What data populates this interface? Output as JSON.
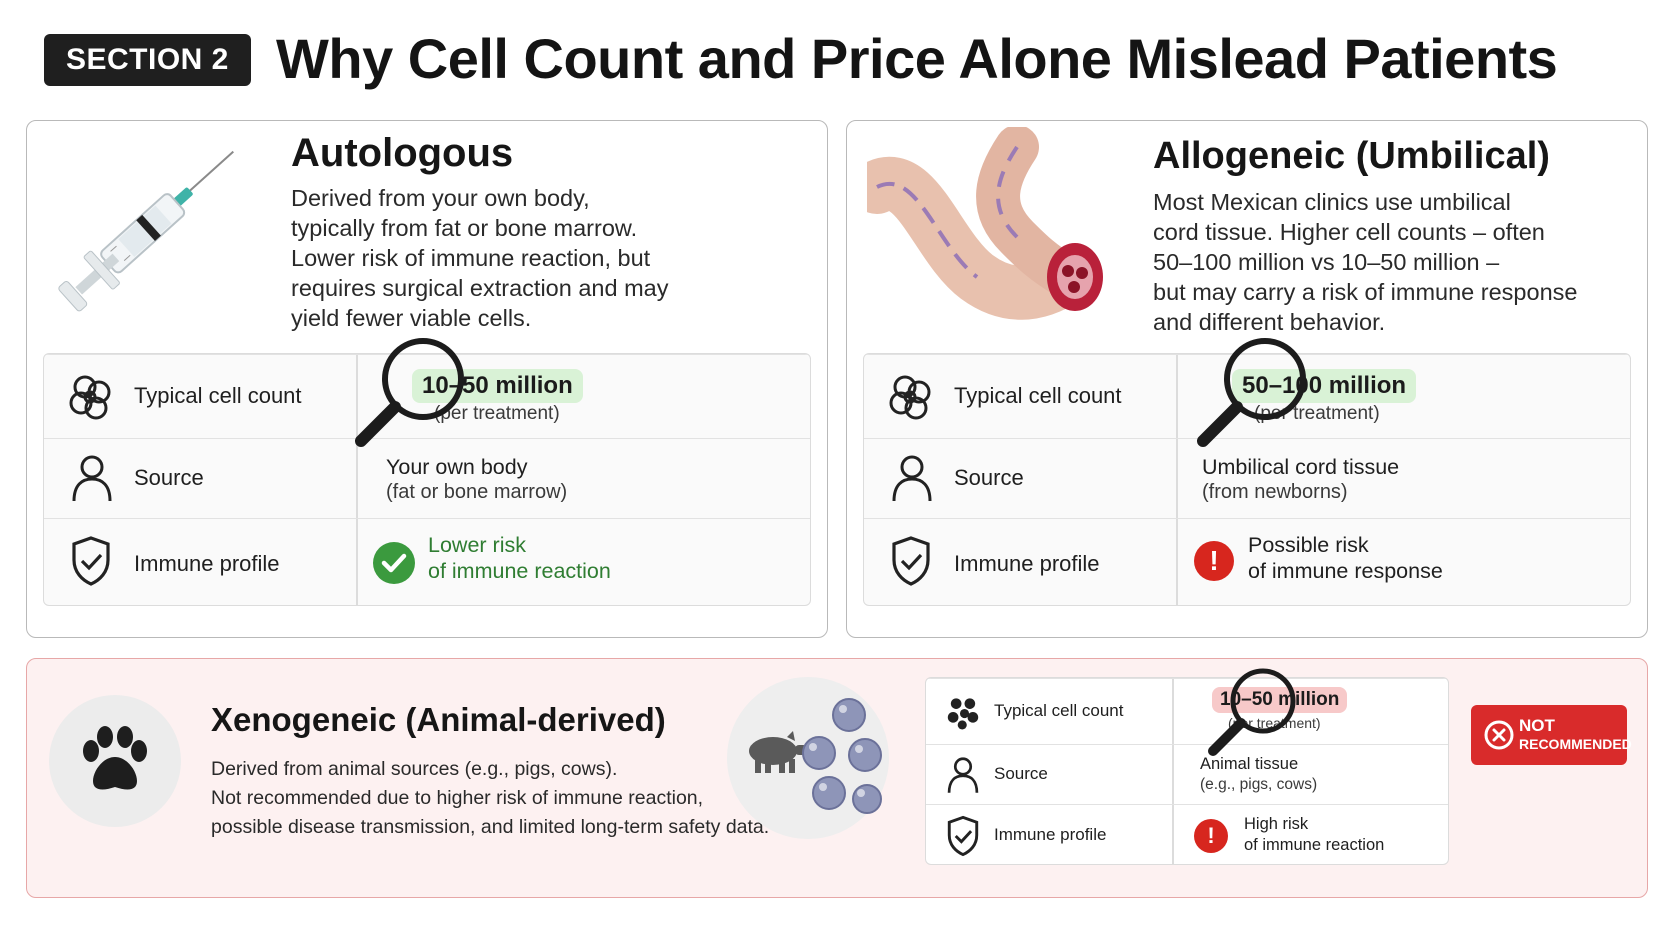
{
  "header": {
    "section_badge": "SECTION 2",
    "title": "Why Cell Count and Price Alone Mislead Patients"
  },
  "autologous": {
    "title": "Autologous",
    "description": [
      "Derived from your own body,",
      "typically from fat or bone marrow.",
      "Lower risk of immune reaction, but",
      "requires surgical extraction and may",
      "yield fewer viable cells."
    ],
    "rows": {
      "cell_count_label": "Typical cell count",
      "cell_count_value": "10–50 million",
      "cell_count_sub": "(per treatment)",
      "source_label": "Source",
      "source_value": "Your own body",
      "source_sub": "(fat or bone marrow)",
      "immune_label": "Immune profile",
      "immune_value_1": "Lower risk",
      "immune_value_2": "of immune reaction"
    }
  },
  "allogeneic": {
    "title": "Allogeneic (Umbilical)",
    "description": [
      "Most Mexican clinics use umbilical",
      "cord tissue. Higher cell counts – often",
      "50–100 million vs 10–50 million –",
      "but may carry a risk of immune response",
      "and different behavior."
    ],
    "rows": {
      "cell_count_label": "Typical cell count",
      "cell_count_value": "50–100 million",
      "cell_count_sub": "(per treatment)",
      "source_label": "Source",
      "source_value": "Umbilical cord tissue",
      "source_sub": "(from newborns)",
      "immune_label": "Immune profile",
      "immune_value_1": "Possible risk",
      "immune_value_2": "of immune response",
      "alert_glyph": "!"
    }
  },
  "xenogeneic": {
    "title": "Xenogeneic (Animal-derived)",
    "description": [
      "Derived from animal sources (e.g., pigs, cows).",
      "Not recommended due to higher risk of immune reaction,",
      "possible disease transmission, and limited long-term safety data."
    ],
    "rows": {
      "cell_count_label": "Typical cell count",
      "cell_count_value": "10–50 million",
      "cell_count_sub": "(per treatment)",
      "source_label": "Source",
      "source_value": "Animal tissue",
      "source_sub": "(e.g., pigs, cows)",
      "immune_label": "Immune profile",
      "immune_value_1": "High risk",
      "immune_value_2": "of immune reaction",
      "alert_glyph": "!"
    },
    "badge_line1": "NOT",
    "badge_line2": "RECOMMENDED"
  },
  "colors": {
    "accent_green": "#3b9a3e",
    "highlight_green": "#d9f2d6",
    "accent_red": "#d92b2b",
    "highlight_red": "#f7c9c9",
    "xeno_background": "#fdf1f1"
  },
  "icons": [
    "syringe-image",
    "umbilical-cord-image",
    "cells-icon",
    "person-icon",
    "shield-check-icon",
    "check-circle-icon",
    "alert-circle-icon",
    "magnifier-icon",
    "paw-icon",
    "pig-icon",
    "close-circle-icon"
  ]
}
